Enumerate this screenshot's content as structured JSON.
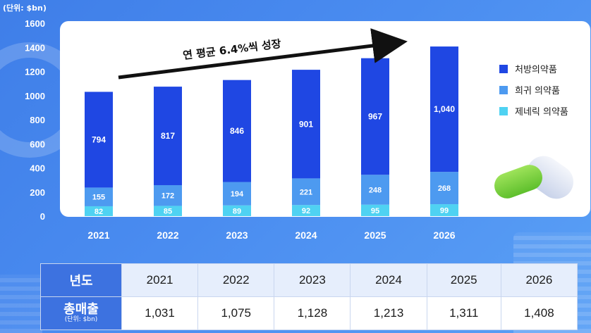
{
  "chart_data": {
    "type": "bar",
    "stacked": true,
    "unit_label": "(단위: $bn)",
    "categories": [
      "2021",
      "2022",
      "2023",
      "2024",
      "2025",
      "2026"
    ],
    "series": [
      {
        "name": "제네릭 의약품",
        "values": [
          82,
          85,
          89,
          92,
          95,
          99
        ],
        "color": "#4fd2f2"
      },
      {
        "name": "희귀 의약품",
        "values": [
          155,
          172,
          194,
          221,
          248,
          268
        ],
        "color": "#4d9af0"
      },
      {
        "name": "처방의약품",
        "values": [
          794,
          817,
          846,
          901,
          967,
          1040
        ],
        "color": "#1f47e3"
      }
    ],
    "legend_order": [
      "처방의약품",
      "희귀 의약품",
      "제네릭 의약품"
    ],
    "legend_position": "right",
    "y_ticks": [
      0,
      200,
      400,
      600,
      800,
      1000,
      1200,
      1400,
      1600
    ],
    "ylim": [
      0,
      1600
    ],
    "grid": false,
    "annotation": "연 평균 6.4%씩 성장",
    "value_labels": {
      "2026_top": "1,040"
    }
  },
  "table": {
    "year_header": "년도",
    "total_header": "총매출",
    "total_unit": "(단위: $bn)",
    "years": [
      "2021",
      "2022",
      "2023",
      "2024",
      "2025",
      "2026"
    ],
    "totals": [
      "1,031",
      "1,075",
      "1,128",
      "1,213",
      "1,311",
      "1,408"
    ]
  }
}
